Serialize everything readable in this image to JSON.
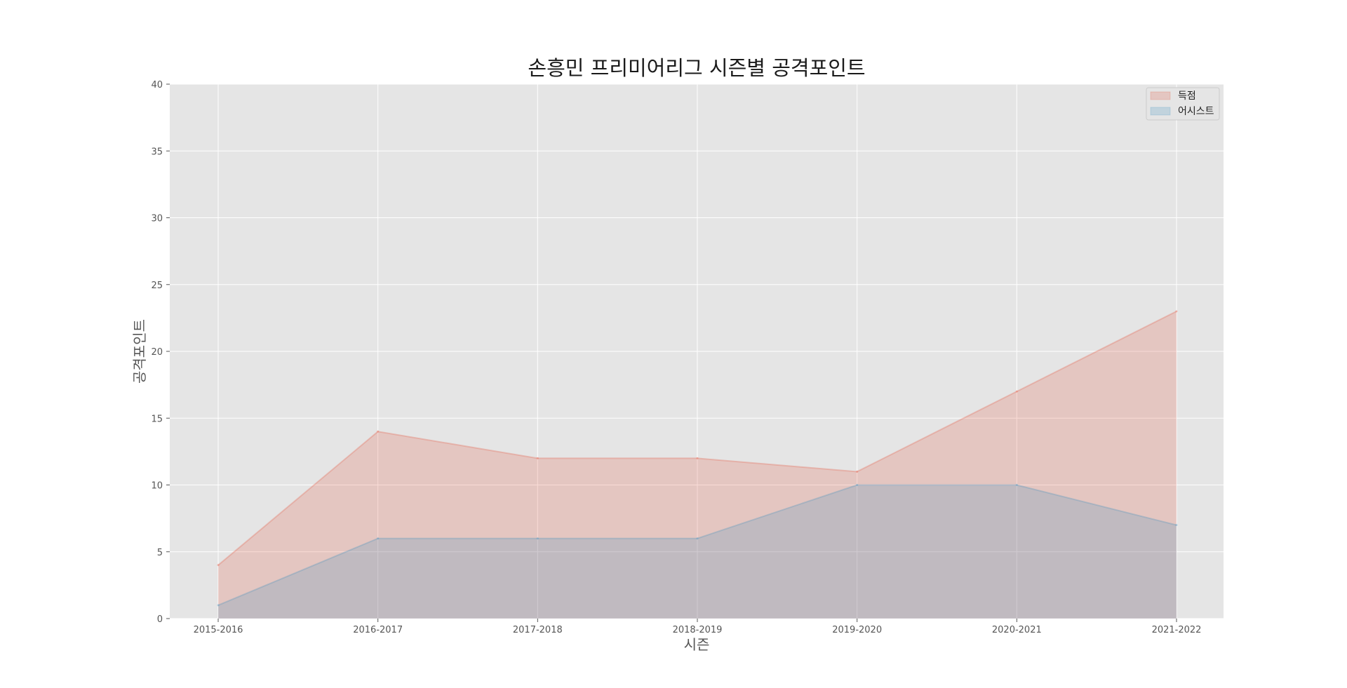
{
  "chart_data": {
    "type": "area",
    "title": "손흥민 프리미어리그 시즌별 공격포인트",
    "xlabel": "시즌",
    "ylabel": "공격포인트",
    "categories": [
      "2015-2016",
      "2016-2017",
      "2017-2018",
      "2018-2019",
      "2019-2020",
      "2020-2021",
      "2021-2022"
    ],
    "series": [
      {
        "name": "득점",
        "values": [
          4,
          14,
          12,
          12,
          11,
          17,
          23
        ],
        "color": "#E24A33"
      },
      {
        "name": "어시스트",
        "values": [
          1,
          6,
          6,
          6,
          10,
          10,
          7
        ],
        "color": "#348ABD"
      }
    ],
    "ylim": [
      0,
      40
    ],
    "yticks": [
      0,
      5,
      10,
      15,
      20,
      25,
      30,
      35,
      40
    ],
    "grid": true,
    "legend_position": "top-right",
    "background_color": "#E5E5E5",
    "gridline_color": "#FFFFFF"
  }
}
